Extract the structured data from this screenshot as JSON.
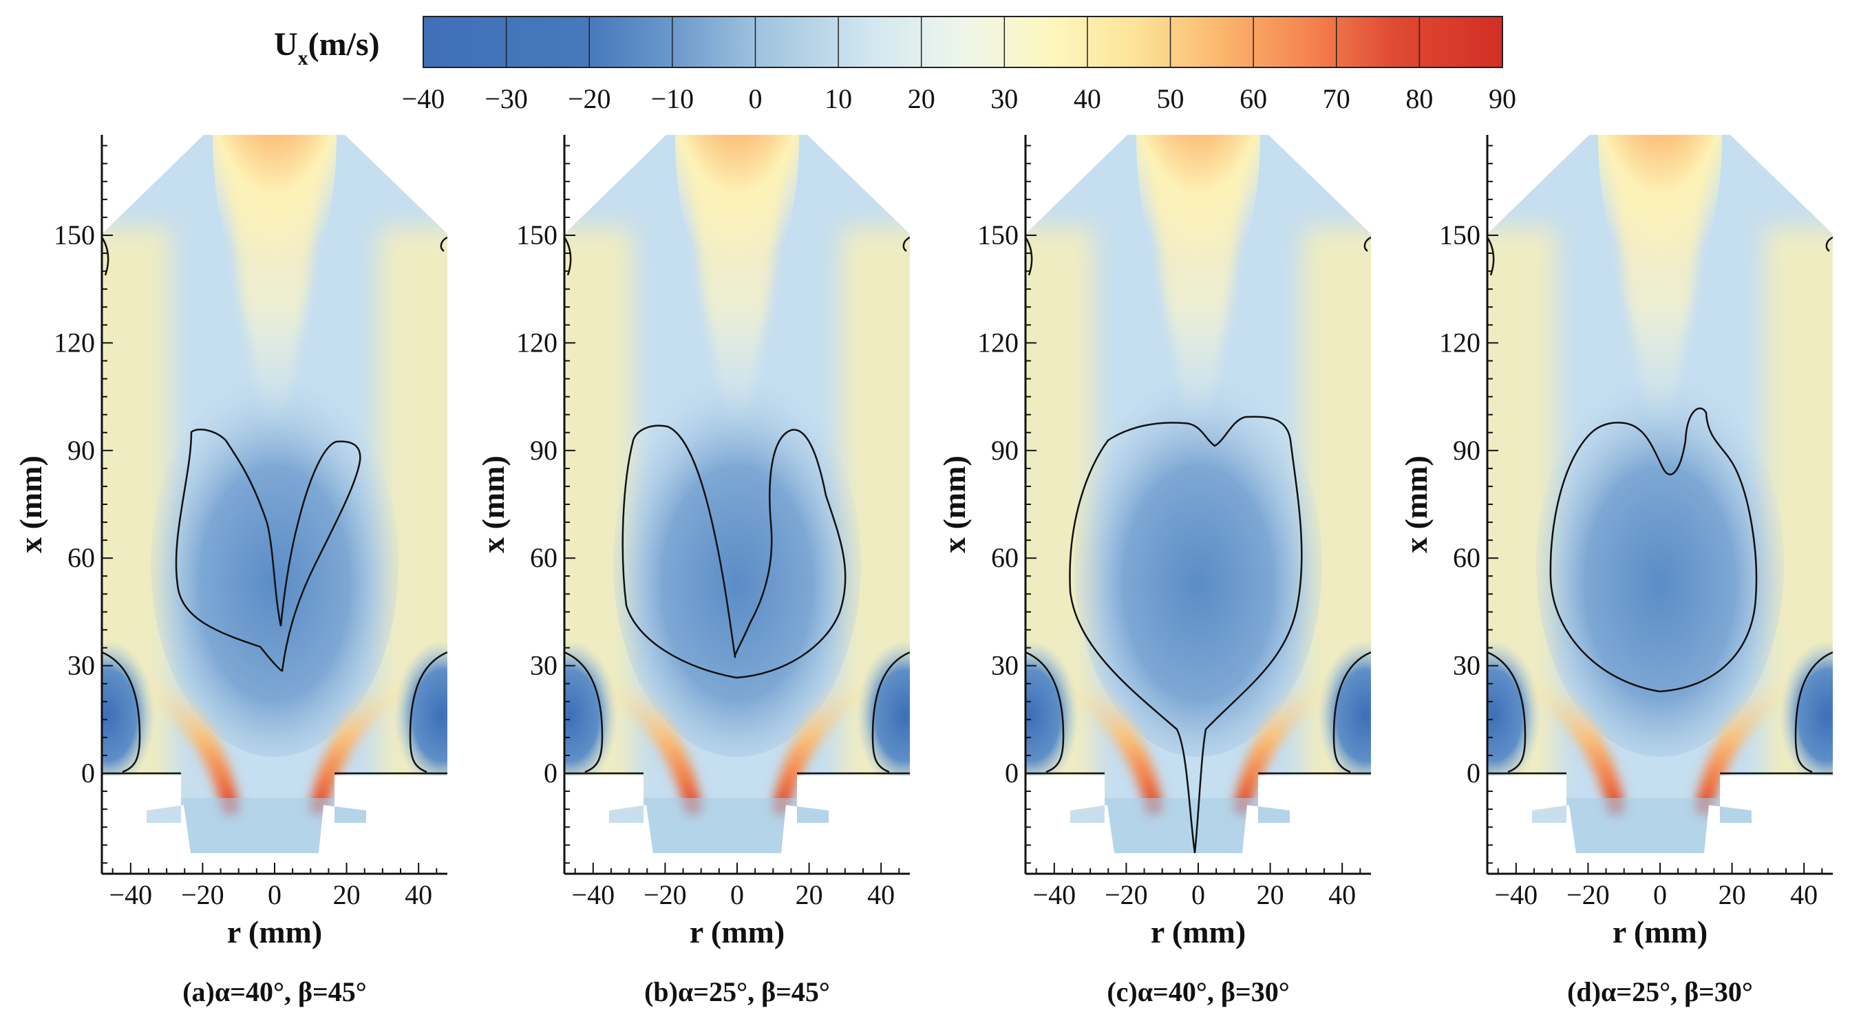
{
  "figure": {
    "colorbar": {
      "title_main": "U",
      "title_sub": "x",
      "title_unit": "(m/s)",
      "ticks": [
        "−40",
        "−30",
        "−20",
        "−10",
        "0",
        "10",
        "20",
        "30",
        "40",
        "50",
        "60",
        "70",
        "80",
        "90"
      ]
    },
    "panels": [
      {
        "caption": "(a)α=40°, β=45°"
      },
      {
        "caption": "(b)α=25°, β=45°"
      },
      {
        "caption": "(c)α=40°, β=30°"
      },
      {
        "caption": "(d)α=25°, β=30°"
      }
    ]
  },
  "chart_data": {
    "type": "heatmap",
    "variable": "U_x (m/s)",
    "colorbar_range": [
      -40,
      90
    ],
    "colorbar_step": 10,
    "colors": {
      "negative_deep": "#3f70b8",
      "zero": "#bcd8ec",
      "mid": "#fcfbd0",
      "positive_deep": "#d43325"
    },
    "xlabel": "r (mm)",
    "ylabel": "x (mm)",
    "xlim": [
      -48,
      48
    ],
    "ylim": [
      -28,
      178
    ],
    "x_ticks": [
      "-40",
      "-20",
      "0",
      "20",
      "40"
    ],
    "y_ticks": [
      "0",
      "30",
      "60",
      "90",
      "120",
      "150"
    ],
    "panels": [
      {
        "label": "(a)",
        "alpha_deg": 40,
        "beta_deg": 45,
        "recirculation_zone_top_mm": 90,
        "recirculation_zone_bottom_mm": 30,
        "shape": "V-shaped, two lobes"
      },
      {
        "label": "(b)",
        "alpha_deg": 25,
        "beta_deg": 45,
        "recirculation_zone_top_mm": 96,
        "recirculation_zone_bottom_mm": 20,
        "shape": "U-shaped"
      },
      {
        "label": "(c)",
        "alpha_deg": 40,
        "beta_deg": 30,
        "recirculation_zone_top_mm": 99,
        "recirculation_zone_bottom_mm": -22,
        "shape": "bulb with stem to inlet"
      },
      {
        "label": "(d)",
        "alpha_deg": 25,
        "beta_deg": 30,
        "recirculation_zone_top_mm": 100,
        "recirculation_zone_bottom_mm": 17,
        "shape": "closed bubble"
      }
    ]
  }
}
